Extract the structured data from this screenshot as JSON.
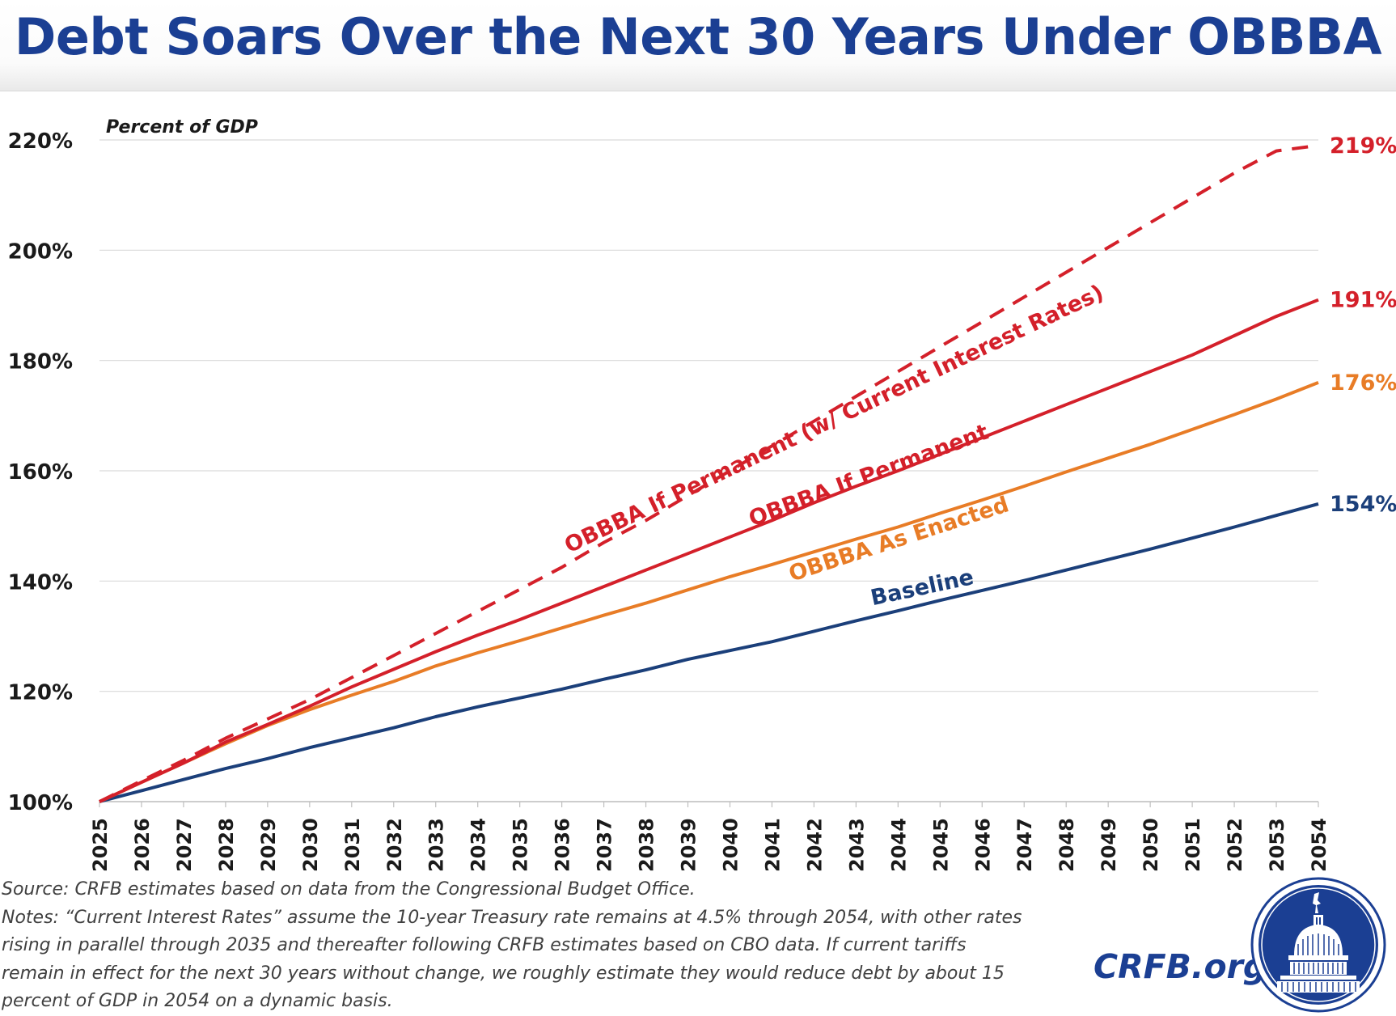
{
  "header": {
    "title": "Debt Soars Over the Next 30 Years Under OBBBA"
  },
  "chart_data": {
    "type": "line",
    "title": "Debt Soars Over the Next 30 Years Under OBBBA",
    "ylabel": "Percent of GDP",
    "xlabel": "",
    "ylim": [
      100,
      220
    ],
    "y_ticks": [
      100,
      120,
      140,
      160,
      180,
      200,
      220
    ],
    "y_tick_labels": [
      "100%",
      "120%",
      "140%",
      "160%",
      "180%",
      "200%",
      "220%"
    ],
    "x": [
      "2025",
      "2026",
      "2027",
      "2028",
      "2029",
      "2030",
      "2031",
      "2032",
      "2033",
      "2034",
      "2035",
      "2036",
      "2037",
      "2038",
      "2039",
      "2040",
      "2041",
      "2042",
      "2043",
      "2044",
      "2045",
      "2046",
      "2047",
      "2048",
      "2049",
      "2050",
      "2051",
      "2052",
      "2053",
      "2054"
    ],
    "grid": true,
    "legend": "inline labels",
    "series": [
      {
        "name": "OBBBA If Permanent (w/ Current Interest Rates)",
        "style": "dashed",
        "color": "#d4202a",
        "end_label": "219%",
        "values": [
          100,
          103.8,
          107.5,
          111.5,
          115,
          118.5,
          122.5,
          126.5,
          130.5,
          134.5,
          138.5,
          142.5,
          147,
          151,
          155.5,
          160,
          164.5,
          169,
          173.5,
          178,
          182.5,
          187,
          191.5,
          196,
          200.5,
          205,
          209.5,
          214,
          218,
          219
        ]
      },
      {
        "name": "OBBBA If Permanent",
        "style": "solid",
        "color": "#d4202a",
        "end_label": "191%",
        "values": [
          100,
          103.5,
          107,
          110.8,
          114,
          117.3,
          120.8,
          124,
          127.2,
          130.2,
          133,
          136,
          139,
          142,
          145,
          148,
          151,
          154.2,
          157.2,
          160,
          163,
          166,
          169,
          172,
          175,
          178,
          181,
          184.5,
          188,
          191
        ]
      },
      {
        "name": "OBBBA As Enacted",
        "style": "solid",
        "color": "#e87c26",
        "end_label": "176%",
        "values": [
          100,
          103.5,
          107,
          110.5,
          113.8,
          116.7,
          119.3,
          121.8,
          124.6,
          127,
          129.2,
          131.5,
          133.8,
          136,
          138.4,
          140.8,
          143,
          145.3,
          147.6,
          149.8,
          152.3,
          154.7,
          157.2,
          159.8,
          162.3,
          164.8,
          167.5,
          170.2,
          173,
          176
        ]
      },
      {
        "name": "Baseline",
        "style": "solid",
        "color": "#1b3f7a",
        "end_label": "154%",
        "values": [
          100,
          102,
          104,
          106,
          107.8,
          109.8,
          111.6,
          113.4,
          115.4,
          117.2,
          118.8,
          120.4,
          122.2,
          123.9,
          125.8,
          127.4,
          129,
          130.9,
          132.8,
          134.6,
          136.5,
          138.3,
          140.1,
          142,
          143.9,
          145.8,
          147.8,
          149.8,
          151.9,
          154
        ]
      }
    ]
  },
  "notes": {
    "source": "Source: CRFB estimates based on data from the Congressional Budget Office.",
    "line1": "Notes: “Current Interest Rates” assume the 10-year Treasury rate remains at 4.5% through 2054, with other rates",
    "line2": "rising in parallel through 2035 and thereafter following CRFB estimates based on CBO data. If current tariffs",
    "line3": "remain in effect for the next 30 years without change, we roughly estimate they would reduce debt by about 15",
    "line4": "percent of GDP in 2054 on a dynamic basis."
  },
  "brand": {
    "site": "CRFB.org",
    "logo_icon": "capitol-dome-icon"
  },
  "colors": {
    "title": "#1b3f93",
    "red": "#d4202a",
    "orange": "#e87c26",
    "navy": "#1b3f7a"
  }
}
